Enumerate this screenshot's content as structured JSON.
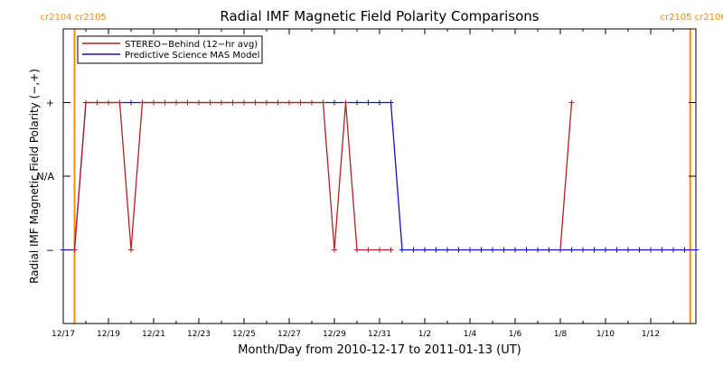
{
  "chart_data": {
    "type": "line",
    "title": "Radial IMF Magnetic Field Polarity Comparisons",
    "xlabel": "Month/Day from 2010-12-17 to 2011-01-13 (UT)",
    "ylabel": "Radial IMF Magnetic Field Polarity (−,+)",
    "xlim": [
      "2010-12-17",
      "2011-01-14"
    ],
    "ylim": [
      -2,
      2
    ],
    "y_tick_labels": [
      "−",
      "N/A",
      "+"
    ],
    "y_tick_values": [
      -1,
      0,
      1
    ],
    "x_ticks": [
      {
        "date": "2010-12-17",
        "label": "12/17"
      },
      {
        "date": "2010-12-19",
        "label": "12/19"
      },
      {
        "date": "2010-12-21",
        "label": "12/21"
      },
      {
        "date": "2010-12-23",
        "label": "12/23"
      },
      {
        "date": "2010-12-25",
        "label": "12/25"
      },
      {
        "date": "2010-12-27",
        "label": "12/27"
      },
      {
        "date": "2010-12-29",
        "label": "12/29"
      },
      {
        "date": "2010-12-31",
        "label": "12/31"
      },
      {
        "date": "2011-01-02",
        "label": "1/2"
      },
      {
        "date": "2011-01-04",
        "label": "1/4"
      },
      {
        "date": "2011-01-06",
        "label": "1/6"
      },
      {
        "date": "2011-01-08",
        "label": "1/8"
      },
      {
        "date": "2011-01-10",
        "label": "1/10"
      },
      {
        "date": "2011-01-12",
        "label": "1/12"
      }
    ],
    "legend_position": "top-left",
    "grid": false,
    "carrington_markers": [
      {
        "date": "2010-12-17 12:00",
        "label": "cr2104 cr2105"
      },
      {
        "date": "2011-01-13 18:00",
        "label": "cr2105 cr2106"
      }
    ],
    "series": [
      {
        "name": "STEREO−Behind (12−hr avg)",
        "color": "#b22222",
        "marker": "plus",
        "points": [
          {
            "t": "2010-12-17 12:00",
            "y": -1
          },
          {
            "t": "2010-12-18 00:00",
            "y": 1
          },
          {
            "t": "2010-12-18 12:00",
            "y": 1
          },
          {
            "t": "2010-12-19 00:00",
            "y": 1
          },
          {
            "t": "2010-12-19 12:00",
            "y": 1
          },
          {
            "t": "2010-12-20 00:00",
            "y": -1
          },
          {
            "t": "2010-12-20 12:00",
            "y": 1
          },
          {
            "t": "2010-12-21 00:00",
            "y": 1
          },
          {
            "t": "2010-12-21 12:00",
            "y": 1
          },
          {
            "t": "2010-12-22 00:00",
            "y": 1
          },
          {
            "t": "2010-12-22 12:00",
            "y": 1
          },
          {
            "t": "2010-12-23 00:00",
            "y": 1
          },
          {
            "t": "2010-12-23 12:00",
            "y": 1
          },
          {
            "t": "2010-12-24 00:00",
            "y": 1
          },
          {
            "t": "2010-12-24 12:00",
            "y": 1
          },
          {
            "t": "2010-12-25 00:00",
            "y": 1
          },
          {
            "t": "2010-12-25 12:00",
            "y": 1
          },
          {
            "t": "2010-12-26 00:00",
            "y": 1
          },
          {
            "t": "2010-12-26 12:00",
            "y": 1
          },
          {
            "t": "2010-12-27 00:00",
            "y": 1
          },
          {
            "t": "2010-12-27 12:00",
            "y": 1
          },
          {
            "t": "2010-12-28 00:00",
            "y": 1
          },
          {
            "t": "2010-12-28 12:00",
            "y": 1
          },
          {
            "t": "2010-12-29 00:00",
            "y": -1
          },
          {
            "t": "2010-12-29 12:00",
            "y": 1
          },
          {
            "t": "2010-12-30 00:00",
            "y": -1
          },
          {
            "t": "2010-12-30 12:00",
            "y": -1
          },
          {
            "t": "2010-12-31 00:00",
            "y": -1
          },
          {
            "t": "2010-12-31 12:00",
            "y": -1
          },
          {
            "t": "2011-01-08 12:00",
            "y": 1
          }
        ]
      },
      {
        "name": "Predictive Science MAS Model",
        "color": "#1010c0",
        "marker": "plus",
        "points": [
          {
            "t": "2010-12-17 00:00",
            "y": -1
          },
          {
            "t": "2010-12-17 12:00",
            "y": -1
          },
          {
            "t": "2010-12-18 00:00",
            "y": 1
          },
          {
            "t": "2010-12-18 12:00",
            "y": 1
          },
          {
            "t": "2010-12-19 00:00",
            "y": 1
          },
          {
            "t": "2010-12-19 12:00",
            "y": 1
          },
          {
            "t": "2010-12-20 00:00",
            "y": 1
          },
          {
            "t": "2010-12-20 12:00",
            "y": 1
          },
          {
            "t": "2010-12-21 00:00",
            "y": 1
          },
          {
            "t": "2010-12-21 12:00",
            "y": 1
          },
          {
            "t": "2010-12-22 00:00",
            "y": 1
          },
          {
            "t": "2010-12-22 12:00",
            "y": 1
          },
          {
            "t": "2010-12-23 00:00",
            "y": 1
          },
          {
            "t": "2010-12-23 12:00",
            "y": 1
          },
          {
            "t": "2010-12-24 00:00",
            "y": 1
          },
          {
            "t": "2010-12-24 12:00",
            "y": 1
          },
          {
            "t": "2010-12-25 00:00",
            "y": 1
          },
          {
            "t": "2010-12-25 12:00",
            "y": 1
          },
          {
            "t": "2010-12-26 00:00",
            "y": 1
          },
          {
            "t": "2010-12-26 12:00",
            "y": 1
          },
          {
            "t": "2010-12-27 00:00",
            "y": 1
          },
          {
            "t": "2010-12-27 12:00",
            "y": 1
          },
          {
            "t": "2010-12-28 00:00",
            "y": 1
          },
          {
            "t": "2010-12-28 12:00",
            "y": 1
          },
          {
            "t": "2010-12-29 00:00",
            "y": 1
          },
          {
            "t": "2010-12-29 12:00",
            "y": 1
          },
          {
            "t": "2010-12-30 00:00",
            "y": 1
          },
          {
            "t": "2010-12-30 12:00",
            "y": 1
          },
          {
            "t": "2010-12-31 00:00",
            "y": 1
          },
          {
            "t": "2010-12-31 12:00",
            "y": 1
          },
          {
            "t": "2011-01-01 00:00",
            "y": -1
          },
          {
            "t": "2011-01-01 12:00",
            "y": -1
          },
          {
            "t": "2011-01-02 00:00",
            "y": -1
          },
          {
            "t": "2011-01-02 12:00",
            "y": -1
          },
          {
            "t": "2011-01-03 00:00",
            "y": -1
          },
          {
            "t": "2011-01-03 12:00",
            "y": -1
          },
          {
            "t": "2011-01-04 00:00",
            "y": -1
          },
          {
            "t": "2011-01-04 12:00",
            "y": -1
          },
          {
            "t": "2011-01-05 00:00",
            "y": -1
          },
          {
            "t": "2011-01-05 12:00",
            "y": -1
          },
          {
            "t": "2011-01-06 00:00",
            "y": -1
          },
          {
            "t": "2011-01-06 12:00",
            "y": -1
          },
          {
            "t": "2011-01-07 00:00",
            "y": -1
          },
          {
            "t": "2011-01-07 12:00",
            "y": -1
          },
          {
            "t": "2011-01-08 00:00",
            "y": -1
          },
          {
            "t": "2011-01-08 12:00",
            "y": -1
          },
          {
            "t": "2011-01-09 00:00",
            "y": -1
          },
          {
            "t": "2011-01-09 12:00",
            "y": -1
          },
          {
            "t": "2011-01-10 00:00",
            "y": -1
          },
          {
            "t": "2011-01-10 12:00",
            "y": -1
          },
          {
            "t": "2011-01-11 00:00",
            "y": -1
          },
          {
            "t": "2011-01-11 12:00",
            "y": -1
          },
          {
            "t": "2011-01-12 00:00",
            "y": -1
          },
          {
            "t": "2011-01-12 12:00",
            "y": -1
          },
          {
            "t": "2011-01-13 00:00",
            "y": -1
          },
          {
            "t": "2011-01-13 12:00",
            "y": -1
          },
          {
            "t": "2011-01-14 00:00",
            "y": -1
          }
        ]
      }
    ]
  },
  "colors": {
    "axis": "#000000",
    "marker_line": "#ff8c00",
    "marker_text": "#ff8c00"
  }
}
